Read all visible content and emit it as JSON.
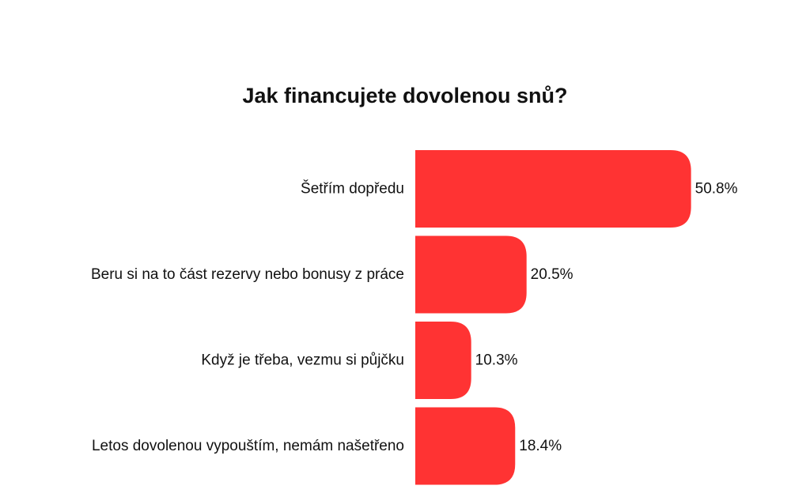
{
  "chart_data": {
    "type": "bar",
    "orientation": "horizontal",
    "title": "Jak financujete dovolenou snů?",
    "categories": [
      "Šetřím dopředu",
      "Beru si na to část rezervy nebo bonusy z práce",
      "Když je třeba, vezmu si půjčku",
      "Letos dovolenou vypouštím, nemám našetřeno"
    ],
    "values": [
      50.8,
      20.5,
      10.3,
      18.4
    ],
    "value_labels": [
      "50.8%",
      "20.5%",
      "10.3%",
      "18.4%"
    ],
    "unit": "%",
    "xlim": [
      0,
      51
    ],
    "bar_color": "#ff3333",
    "grid": false,
    "legend": "none"
  }
}
